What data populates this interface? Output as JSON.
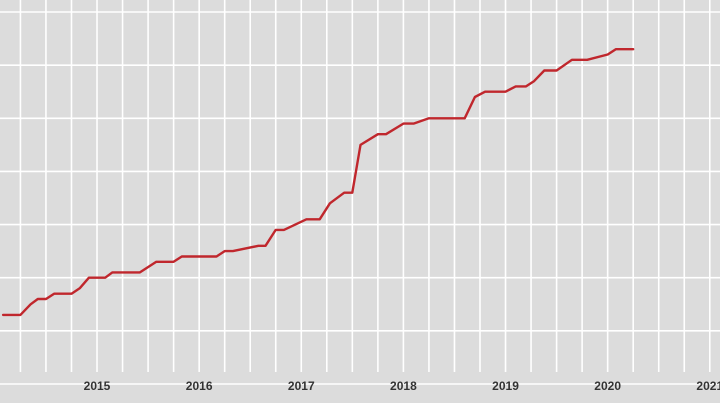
{
  "chart_data": {
    "type": "line",
    "title": "",
    "xlabel": "",
    "ylabel": "",
    "grid": true,
    "xlim": [
      2014.55,
      2021.6
    ],
    "ylim": [
      0,
      7
    ],
    "x_ticks": [
      "2015",
      "2016",
      "2017",
      "2018",
      "2019",
      "2020",
      "2021"
    ],
    "line_color": "#c0272d",
    "background_color": "#dcdcdc",
    "series": [
      {
        "x": [
          2014.58,
          2014.75,
          2014.85,
          2014.92,
          2015.0,
          2015.08,
          2015.25,
          2015.33,
          2015.42,
          2015.58,
          2015.65,
          2015.92,
          2016.08,
          2016.25,
          2016.33,
          2016.67,
          2016.75,
          2016.83,
          2017.08,
          2017.15,
          2017.25,
          2017.33,
          2017.55,
          2017.68,
          2017.78,
          2017.92,
          2018.0,
          2018.08,
          2018.25,
          2018.33,
          2018.5,
          2018.6,
          2018.75,
          2019.1,
          2019.2,
          2019.3,
          2019.5,
          2019.6,
          2019.7,
          2019.78,
          2019.88,
          2020.0,
          2020.15,
          2020.3,
          2020.5,
          2020.58,
          2020.75
        ],
        "y": [
          1.3,
          1.3,
          1.5,
          1.6,
          1.6,
          1.7,
          1.7,
          1.8,
          2.0,
          2.0,
          2.1,
          2.1,
          2.3,
          2.3,
          2.4,
          2.4,
          2.5,
          2.5,
          2.6,
          2.6,
          2.9,
          2.9,
          3.1,
          3.1,
          3.4,
          3.6,
          3.6,
          4.5,
          4.7,
          4.7,
          4.9,
          4.9,
          5.0,
          5.0,
          5.4,
          5.5,
          5.5,
          5.6,
          5.6,
          5.7,
          5.9,
          5.9,
          6.1,
          6.1,
          6.2,
          6.3,
          6.3
        ]
      }
    ]
  }
}
